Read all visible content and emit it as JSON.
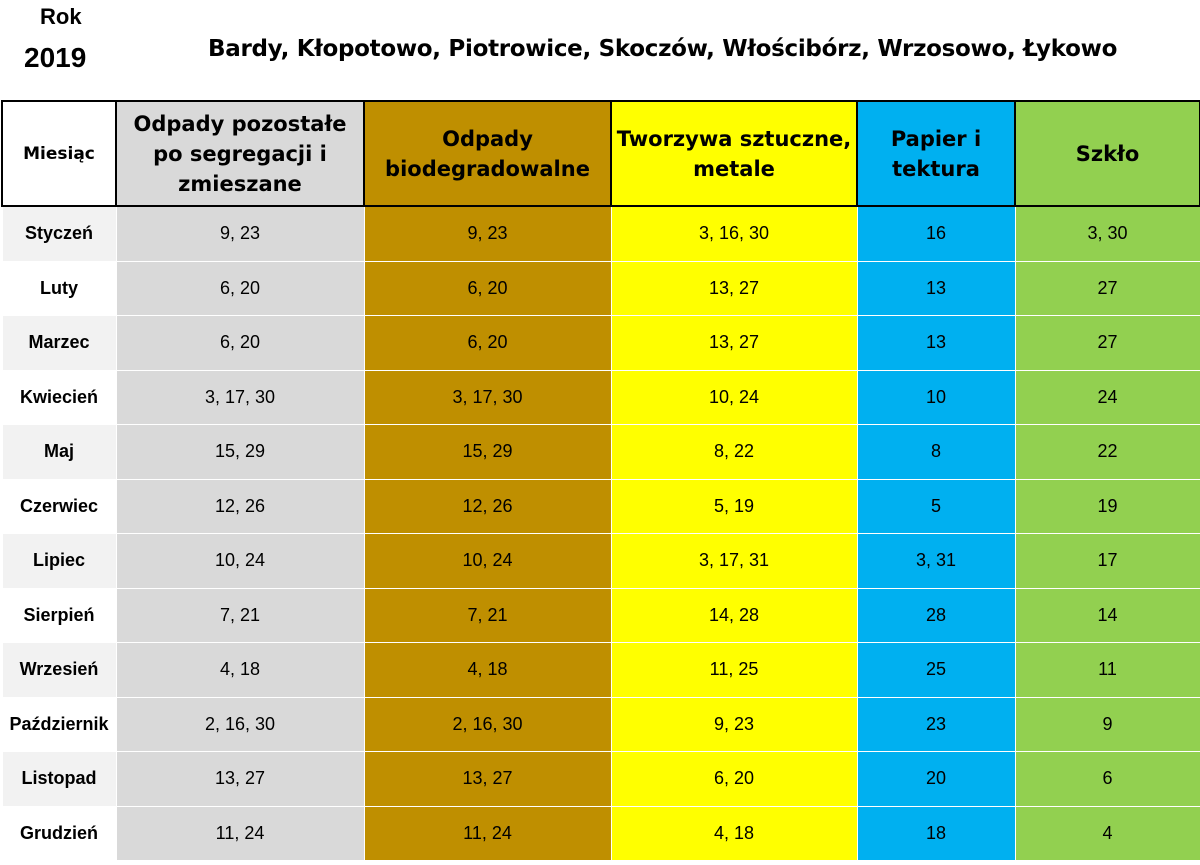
{
  "header": {
    "rok_label": "Rok",
    "year": "2019",
    "places": "Bardy, Kłopotowo, Piotrowice, Skoczów, Włościbórz, Wrzosowo, Łykowo"
  },
  "table": {
    "columns": {
      "month": "Miesiąc",
      "mixed": "Odpady pozostałe po segregacji i zmieszane",
      "bio": "Odpady biodegradowalne",
      "plastic": "Tworzywa sztuczne, metale",
      "paper": "Papier i tektura",
      "glass": "Szkło"
    },
    "rows": [
      {
        "month": "Styczeń",
        "mixed": "9, 23",
        "bio": "9, 23",
        "plastic": "3, 16, 30",
        "paper": "16",
        "glass": "3, 30"
      },
      {
        "month": "Luty",
        "mixed": "6, 20",
        "bio": "6, 20",
        "plastic": "13, 27",
        "paper": "13",
        "glass": "27"
      },
      {
        "month": "Marzec",
        "mixed": "6, 20",
        "bio": "6, 20",
        "plastic": "13, 27",
        "paper": "13",
        "glass": "27"
      },
      {
        "month": "Kwiecień",
        "mixed": "3, 17, 30",
        "bio": "3, 17, 30",
        "plastic": "10, 24",
        "paper": "10",
        "glass": "24"
      },
      {
        "month": "Maj",
        "mixed": "15, 29",
        "bio": "15, 29",
        "plastic": "8, 22",
        "paper": "8",
        "glass": "22"
      },
      {
        "month": "Czerwiec",
        "mixed": "12, 26",
        "bio": "12, 26",
        "plastic": "5, 19",
        "paper": "5",
        "glass": "19"
      },
      {
        "month": "Lipiec",
        "mixed": "10, 24",
        "bio": "10, 24",
        "plastic": "3, 17, 31",
        "paper": "3, 31",
        "glass": "17"
      },
      {
        "month": "Sierpień",
        "mixed": "7, 21",
        "bio": "7, 21",
        "plastic": "14, 28",
        "paper": "28",
        "glass": "14"
      },
      {
        "month": "Wrzesień",
        "mixed": "4, 18",
        "bio": "4, 18",
        "plastic": "11, 25",
        "paper": "25",
        "glass": "11"
      },
      {
        "month": "Październik",
        "mixed": "2, 16, 30",
        "bio": "2, 16, 30",
        "plastic": "9, 23",
        "paper": "23",
        "glass": "9"
      },
      {
        "month": "Listopad",
        "mixed": "13, 27",
        "bio": "13, 27",
        "plastic": "6, 20",
        "paper": "20",
        "glass": "6"
      },
      {
        "month": "Grudzień",
        "mixed": "11, 24",
        "bio": "11, 24",
        "plastic": "4, 18",
        "paper": "18",
        "glass": "4"
      }
    ]
  },
  "colors": {
    "mixed": "#d9d9d9",
    "bio": "#bf8f00",
    "plastic": "#ffff00",
    "paper": "#00b0f0",
    "glass": "#92d050"
  }
}
